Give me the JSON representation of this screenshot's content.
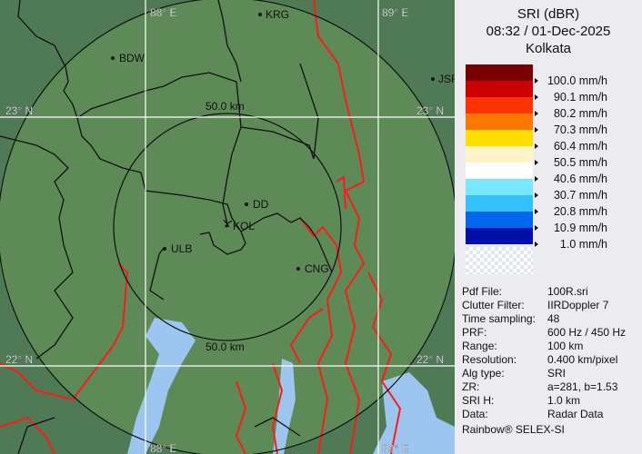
{
  "map": {
    "grid_labels": {
      "lon_left": "88° E",
      "lon_right": "89° E",
      "lat_top": "23° N",
      "lat_bottom": "22° N"
    },
    "range_labels": [
      "50.0 km",
      "50.0 km"
    ],
    "places": [
      {
        "name": "KRG"
      },
      {
        "name": "BDW"
      },
      {
        "name": "JSR"
      },
      {
        "name": "DD"
      },
      {
        "name": "KOL"
      },
      {
        "name": "ULB"
      },
      {
        "name": "CNG"
      }
    ],
    "colors": {
      "land": "#5e8a58",
      "outside": "#4f7a55",
      "water": "#9cc6f0",
      "rivers": "#ff1a1a",
      "borders": "#111111",
      "grid": "#ffffff"
    }
  },
  "legend": {
    "title": "SRI (dBR)",
    "datetime": "08:32 / 01-Dec-2025",
    "site": "Kolkata",
    "items": [
      {
        "label": "100.0 mm/h",
        "color": "#7a0000"
      },
      {
        "label": "90.1 mm/h",
        "color": "#cc0000"
      },
      {
        "label": "80.2 mm/h",
        "color": "#ff3300"
      },
      {
        "label": "70.3 mm/h",
        "color": "#ff7700"
      },
      {
        "label": "60.4 mm/h",
        "color": "#ffdd00"
      },
      {
        "label": "50.5 mm/h",
        "color": "#fff3c8"
      },
      {
        "label": "40.6 mm/h",
        "color": "#ffffff"
      },
      {
        "label": "30.7 mm/h",
        "color": "#77e8ff"
      },
      {
        "label": "20.8 mm/h",
        "color": "#33c0ff"
      },
      {
        "label": "10.9 mm/h",
        "color": "#0066ee"
      },
      {
        "label": "1.0 mm/h",
        "color": "#0010a8"
      }
    ]
  },
  "info": [
    {
      "key": "Pdf File:",
      "value": "100R.sri"
    },
    {
      "key": "Clutter Filter:",
      "value": "IIRDoppler 7"
    },
    {
      "key": "Time sampling:",
      "value": "48"
    },
    {
      "key": "PRF:",
      "value": "600 Hz / 450 Hz"
    },
    {
      "key": "Range:",
      "value": "100 km"
    },
    {
      "key": "Resolution:",
      "value": "0.400 km/pixel"
    },
    {
      "key": "Alg type:",
      "value": "SRI"
    },
    {
      "key": "ZR:",
      "value": "a=281, b=1.53"
    },
    {
      "key": "SRI H:",
      "value": "1.0 km"
    },
    {
      "key": "Data:",
      "value": "Radar Data"
    }
  ],
  "footer": "Rainbow® SELEX-SI"
}
